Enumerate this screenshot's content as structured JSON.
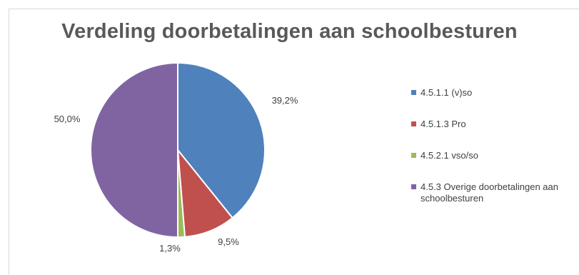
{
  "chart_data": {
    "type": "pie",
    "title": "Verdeling doorbetalingen aan schoolbesturen",
    "slices": [
      {
        "label": "4.5.1.1 (v)so",
        "value": 39.2,
        "value_label": "39,2%",
        "color": "#4f81bd"
      },
      {
        "label": "4.5.1.3 Pro",
        "value": 9.5,
        "value_label": "9,5%",
        "color": "#c0504d"
      },
      {
        "label": "4.5.2.1 vso/so",
        "value": 1.3,
        "value_label": "1,3%",
        "color": "#9bbb59"
      },
      {
        "label": "4.5.3 Overige doorbetalingen aan schoolbesturen",
        "value": 50.0,
        "value_label": "50,0%",
        "color": "#8064a2"
      }
    ],
    "legend_position": "right"
  }
}
